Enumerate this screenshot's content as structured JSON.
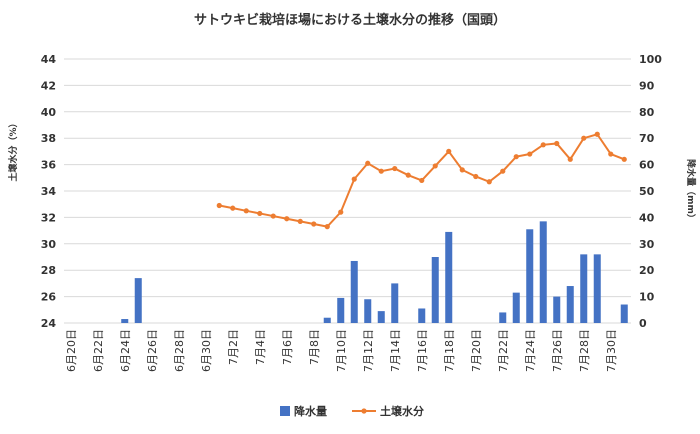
{
  "chart_data": {
    "type": "bar+line",
    "title": "サトウキビ栽培ほ場における土壌水分の推移（国頭）",
    "ylabel_left": "土壌水分（%）",
    "ylabel_right": "降水量（mm）",
    "ylim_left": [
      24,
      44
    ],
    "yticks_left": [
      24,
      26,
      28,
      30,
      32,
      34,
      36,
      38,
      40,
      42,
      44
    ],
    "ylim_right": [
      0,
      100
    ],
    "yticks_right": [
      0,
      10,
      20,
      30,
      40,
      50,
      60,
      70,
      80,
      90,
      100
    ],
    "grid": true,
    "legend_position": "bottom",
    "categories": [
      "6月20日",
      "6月21日",
      "6月22日",
      "6月23日",
      "6月24日",
      "6月25日",
      "6月26日",
      "6月27日",
      "6月28日",
      "6月29日",
      "6月30日",
      "7月1日",
      "7月2日",
      "7月3日",
      "7月4日",
      "7月5日",
      "7月6日",
      "7月7日",
      "7月8日",
      "7月9日",
      "7月10日",
      "7月11日",
      "7月12日",
      "7月13日",
      "7月14日",
      "7月15日",
      "7月16日",
      "7月17日",
      "7月18日",
      "7月19日",
      "7月20日",
      "7月21日",
      "7月22日",
      "7月23日",
      "7月24日",
      "7月25日",
      "7月26日",
      "7月27日",
      "7月28日",
      "7月29日",
      "7月30日",
      "7月31日"
    ],
    "x_tick_labels": [
      "6月20日",
      "6月22日",
      "6月24日",
      "6月26日",
      "6月28日",
      "6月30日",
      "7月2日",
      "7月4日",
      "7月6日",
      "7月8日",
      "7月10日",
      "7月12日",
      "7月14日",
      "7月16日",
      "7月18日",
      "7月20日",
      "7月22日",
      "7月24日",
      "7月26日",
      "7月28日",
      "7月30日"
    ],
    "series": [
      {
        "name": "降水量",
        "type": "bar",
        "axis": "right",
        "color": "#4472c4",
        "values": [
          0,
          0,
          0,
          0,
          1.5,
          17,
          0,
          0,
          0,
          0,
          0,
          0,
          0,
          0,
          0,
          0,
          0,
          0,
          0,
          2,
          9.5,
          23.5,
          9,
          4.5,
          15,
          0,
          5.5,
          25,
          34.5,
          0,
          0,
          0,
          4,
          11.5,
          35.5,
          38.5,
          10,
          14,
          26,
          26,
          0,
          7
        ]
      },
      {
        "name": "土壌水分",
        "type": "line",
        "axis": "left",
        "color": "#ed7d31",
        "values": [
          null,
          null,
          null,
          null,
          null,
          null,
          null,
          null,
          null,
          null,
          null,
          32.9,
          32.7,
          32.5,
          32.3,
          32.1,
          31.9,
          31.7,
          31.5,
          31.3,
          32.4,
          34.9,
          36.1,
          35.5,
          35.7,
          35.2,
          34.8,
          35.9,
          37.0,
          35.6,
          35.1,
          34.7,
          35.5,
          36.6,
          36.8,
          37.5,
          37.6,
          36.4,
          38.0,
          38.3,
          36.8,
          36.4
        ]
      }
    ]
  }
}
